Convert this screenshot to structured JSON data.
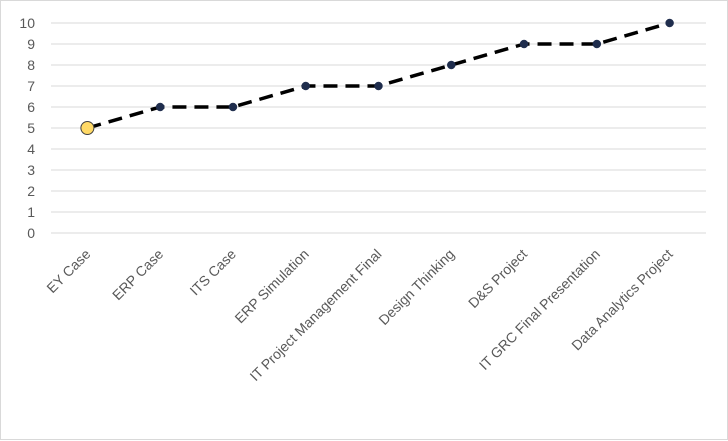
{
  "chart_data": {
    "type": "line",
    "title": "",
    "xlabel": "",
    "ylabel": "",
    "ylim": [
      0,
      10
    ],
    "yticks": [
      0,
      1,
      2,
      3,
      4,
      5,
      6,
      7,
      8,
      9,
      10
    ],
    "grid": true,
    "legend": "none",
    "categories": [
      "EY Case",
      "ERP Case",
      "ITS Case",
      "ERP Simulation",
      "IT Project Management Final",
      "Design Thinking",
      "D&S Project",
      "IT GRC Final Presentation",
      "Data Analytics Project"
    ],
    "series": [
      {
        "values": [
          5,
          6,
          6,
          7,
          7,
          8,
          9,
          9,
          10
        ]
      }
    ],
    "line_color": "#000000",
    "line_style": "dashed",
    "marker_color": "#1f2d4d",
    "highlight_marker_color": "#ffd966",
    "highlight_index": 0,
    "grid_color": "#d9d9d9",
    "text_color": "#595959"
  }
}
